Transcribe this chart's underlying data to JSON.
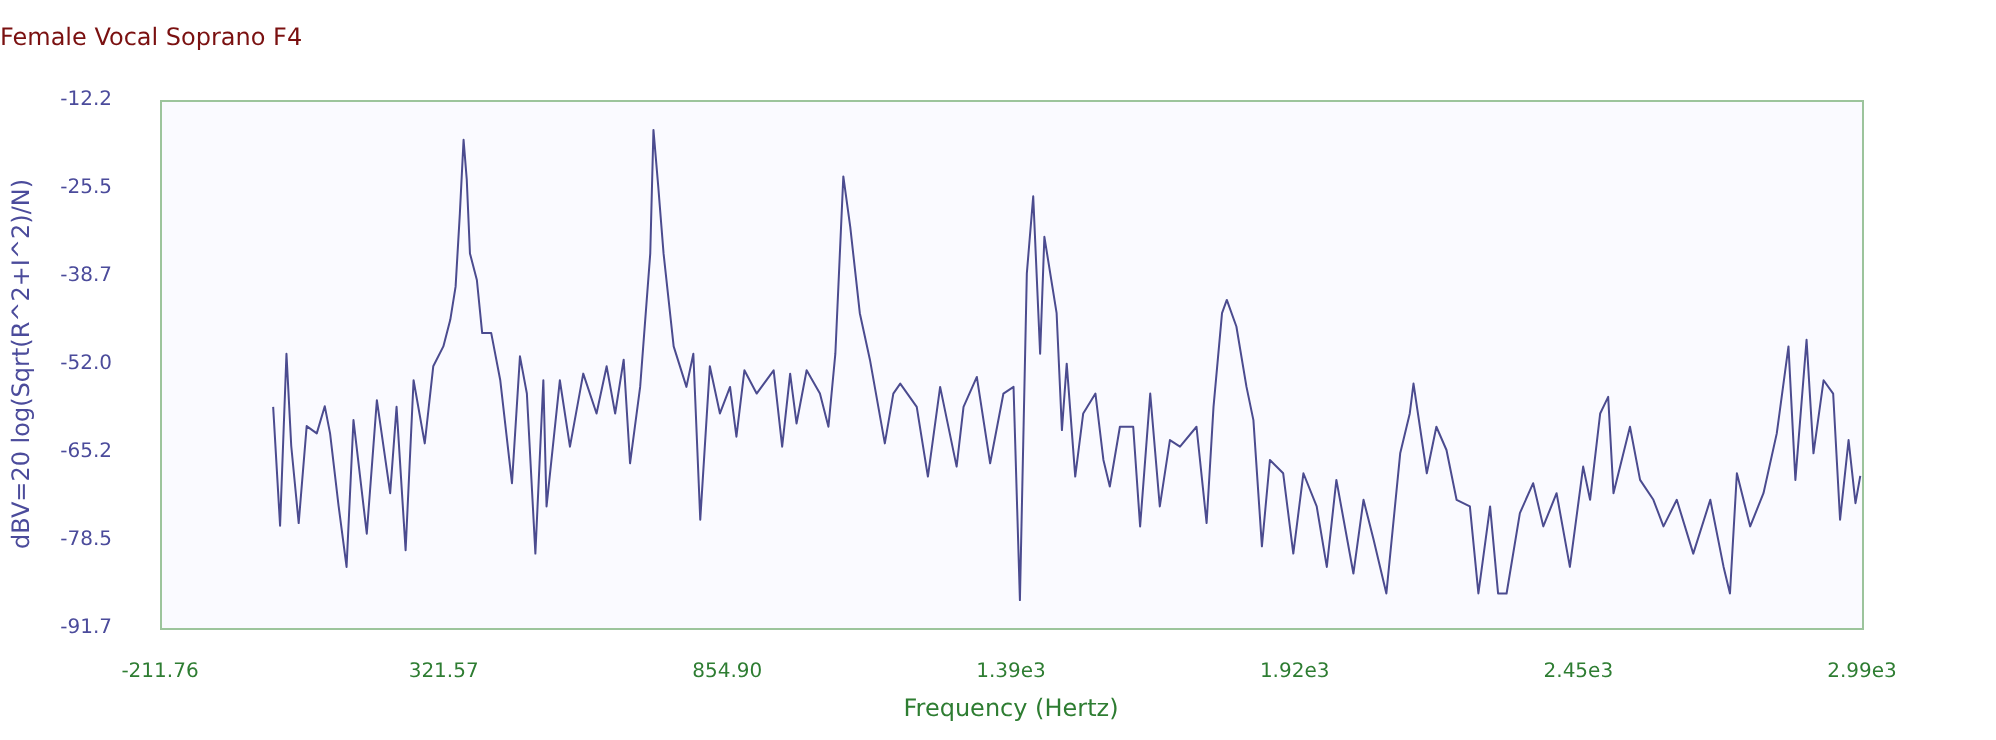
{
  "chart_data": {
    "type": "line",
    "title": "Female Vocal Soprano F4",
    "xlabel": "Frequency (Hertz)",
    "ylabel": "dBV=20 log(Sqrt(R^2+I^2)/N)",
    "color": "#4b4b8f",
    "xlim": [
      -211.76,
      2988.24
    ],
    "xticks": [
      -211.76,
      321.57,
      {
        "value": 854.9,
        "label": "854.90"
      },
      {
        "value": 1388.24,
        "label": "1.39e3"
      },
      {
        "value": 1921.57,
        "label": "1.92e3"
      },
      {
        "value": 2454.9,
        "label": "2.45e3"
      },
      {
        "value": 2988.24,
        "label": "2.99e3"
      }
    ],
    "ylim": [
      -91.7,
      -12.2
    ],
    "yticks": [
      -12.2,
      {
        "value": -25.45,
        "label": "-25.5"
      },
      -38.7,
      {
        "value": -51.95,
        "label": "-52.0"
      },
      -65.2,
      {
        "value": -78.45,
        "label": "-78.5"
      },
      -91.7
    ],
    "x": [
      1,
      14,
      26,
      35,
      49,
      64,
      83,
      98,
      108,
      124,
      139,
      152,
      177,
      196,
      221,
      233,
      250,
      265,
      286,
      302,
      321,
      334,
      344,
      352,
      359,
      365,
      371,
      384,
      394,
      411,
      428,
      450,
      465,
      478,
      494,
      509,
      515,
      540,
      559,
      584,
      609,
      628,
      644,
      660,
      672,
      691,
      710,
      716,
      725,
      735,
      754,
      778,
      791,
      804,
      822,
      841,
      860,
      872,
      887,
      910,
      942,
      958,
      973,
      985,
      1004,
      1029,
      1045,
      1058,
      1073,
      1086,
      1104,
      1123,
      1151,
      1167,
      1180,
      1211,
      1232,
      1255,
      1286,
      1299,
      1324,
      1349,
      1374,
      1393,
      1405,
      1418,
      1430,
      1443,
      1451,
      1474,
      1484,
      1493,
      1509,
      1524,
      1547,
      1562,
      1574,
      1593,
      1618,
      1631,
      1650,
      1668,
      1687,
      1706,
      1737,
      1756,
      1769,
      1785,
      1794,
      1812,
      1831,
      1844,
      1860,
      1875,
      1900,
      1919,
      1938,
      1963,
      1982,
      2000,
      2032,
      2051,
      2070,
      2094,
      2120,
      2138,
      2145,
      2170,
      2188,
      2207,
      2226,
      2251,
      2267,
      2289,
      2304,
      2320,
      2345,
      2370,
      2389,
      2414,
      2439,
      2464,
      2477,
      2496,
      2511,
      2521,
      2552,
      2571,
      2596,
      2615,
      2640,
      2671,
      2703,
      2728,
      2740,
      2753,
      2778,
      2803,
      2828,
      2850,
      2863,
      2884,
      2897,
      2916,
      2934,
      2947,
      2963,
      2976,
      2985
    ],
    "values": [
      -58.4,
      -76.3,
      -50.4,
      -64.3,
      -75.9,
      -61.3,
      -62.4,
      -58.3,
      -62.4,
      -73.3,
      -82.5,
      -60.4,
      -77.5,
      -57.4,
      -71.4,
      -58.4,
      -80.0,
      -54.4,
      -63.9,
      -52.3,
      -49.3,
      -45.3,
      -40.3,
      -29.3,
      -18.2,
      -24.2,
      -35.3,
      -39.3,
      -47.3,
      -47.3,
      -54.4,
      -69.9,
      -50.8,
      -56.4,
      -80.5,
      -54.4,
      -73.4,
      -54.4,
      -64.4,
      -53.4,
      -59.4,
      -52.3,
      -59.4,
      -51.3,
      -66.9,
      -55.4,
      -35.3,
      -16.7,
      -25.2,
      -35.3,
      -49.3,
      -55.4,
      -50.4,
      -75.4,
      -52.3,
      -59.4,
      -55.4,
      -62.9,
      -52.9,
      -56.4,
      -52.9,
      -64.4,
      -53.4,
      -60.9,
      -52.9,
      -56.4,
      -61.4,
      -50.4,
      -23.7,
      -31.3,
      -44.3,
      -51.3,
      -63.9,
      -56.4,
      -54.9,
      -58.4,
      -68.9,
      -55.4,
      -67.4,
      -58.4,
      -53.9,
      -66.9,
      -56.4,
      -55.4,
      -87.5,
      -38.3,
      -26.7,
      -50.4,
      -32.8,
      -44.3,
      -61.9,
      -51.9,
      -68.9,
      -59.4,
      -56.4,
      -66.4,
      -70.4,
      -61.4,
      -61.4,
      -76.4,
      -56.4,
      -73.4,
      -63.4,
      -64.4,
      -61.4,
      -75.9,
      -58.4,
      -44.3,
      -42.3,
      -46.3,
      -55.4,
      -60.4,
      -79.4,
      -66.4,
      -68.4,
      -80.5,
      -68.4,
      -73.4,
      -82.5,
      -69.4,
      -83.5,
      -72.4,
      -78.4,
      -86.5,
      -65.4,
      -59.4,
      -54.9,
      -68.4,
      -61.4,
      -64.9,
      -72.4,
      -73.4,
      -86.5,
      -73.4,
      -86.5,
      -86.5,
      -74.4,
      -69.9,
      -76.4,
      -71.4,
      -82.5,
      -67.4,
      -72.4,
      -59.4,
      -56.9,
      -71.4,
      -61.4,
      -69.4,
      -72.4,
      -76.4,
      -72.4,
      -80.5,
      -72.4,
      -82.5,
      -86.5,
      -68.4,
      -76.4,
      -71.4,
      -62.4,
      -49.3,
      -69.4,
      -48.3,
      -65.4,
      -54.4,
      -56.4,
      -75.4,
      -63.4,
      -72.9,
      -68.8
    ]
  }
}
